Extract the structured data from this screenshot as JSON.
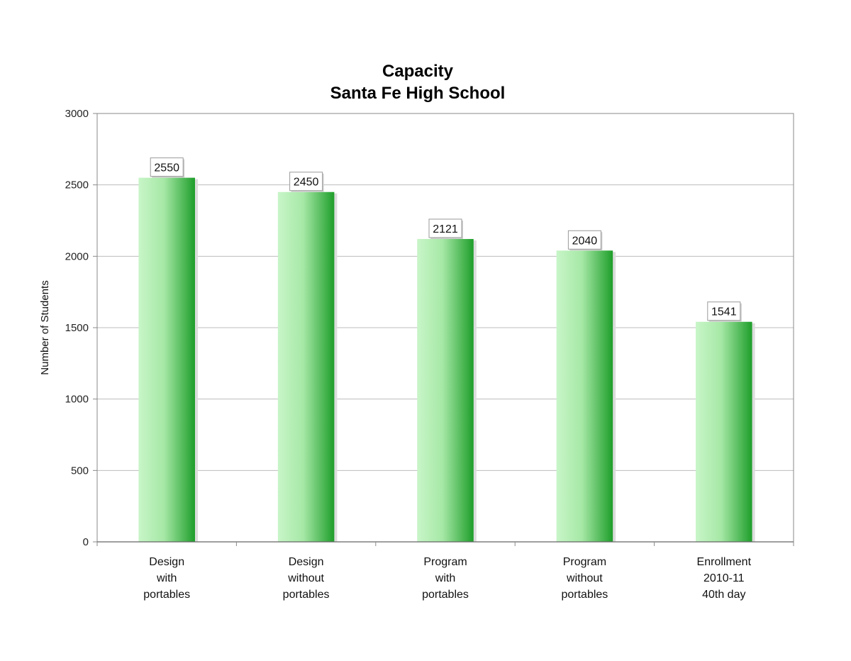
{
  "chart_data": {
    "type": "bar",
    "title": "Capacity",
    "subtitle": "Santa Fe High School",
    "xlabel": "",
    "ylabel": "Number of Students",
    "ylim": [
      0,
      3000
    ],
    "yticks": [
      0,
      500,
      1000,
      1500,
      2000,
      2500,
      3000
    ],
    "grid": true,
    "legend": "none",
    "categories": [
      [
        "Design",
        "with",
        "portables"
      ],
      [
        "Design",
        "without",
        "portables"
      ],
      [
        "Program",
        "with",
        "portables"
      ],
      [
        "Program",
        "without",
        "portables"
      ],
      [
        "Enrollment",
        "2010-11",
        "40th day"
      ]
    ],
    "values": [
      2550,
      2450,
      2121,
      2040,
      1541
    ],
    "data_labels": [
      "2550",
      "2450",
      "2121",
      "2040",
      "1541"
    ],
    "colors": {
      "bar_light": "#c8f5c8",
      "bar_dark": "#1e9e2a",
      "grid": "#bdbdbd",
      "axis": "#888888"
    }
  }
}
